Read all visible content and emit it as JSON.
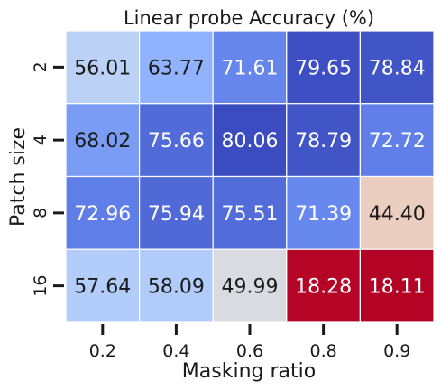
{
  "chart_data": {
    "type": "heatmap",
    "title": "Linear probe Accuracy (%)",
    "xlabel": "Masking ratio",
    "ylabel": "Patch size",
    "x_categories": [
      "0.2",
      "0.4",
      "0.6",
      "0.8",
      "0.9"
    ],
    "y_categories": [
      "2",
      "4",
      "8",
      "16"
    ],
    "values": [
      [
        56.01,
        63.77,
        71.61,
        79.65,
        78.84
      ],
      [
        68.02,
        75.66,
        80.06,
        78.79,
        72.72
      ],
      [
        72.96,
        75.94,
        75.51,
        71.39,
        44.4
      ],
      [
        57.64,
        58.09,
        49.99,
        18.28,
        18.11
      ]
    ],
    "value_labels": [
      [
        "56.01",
        "63.77",
        "71.61",
        "79.65",
        "78.84"
      ],
      [
        "68.02",
        "75.66",
        "80.06",
        "78.79",
        "72.72"
      ],
      [
        "72.96",
        "75.94",
        "75.51",
        "71.39",
        "44.40"
      ],
      [
        "57.64",
        "58.09",
        "49.99",
        "18.28",
        "18.11"
      ]
    ],
    "colormap": "coolwarm_r",
    "color_range": [
      18.11,
      80.06
    ],
    "colors": {
      "cell_border": "#ffffff",
      "text_dark": "#1a1a1a",
      "text_light": "#ffffff",
      "tick": "#1a1a1a"
    }
  }
}
